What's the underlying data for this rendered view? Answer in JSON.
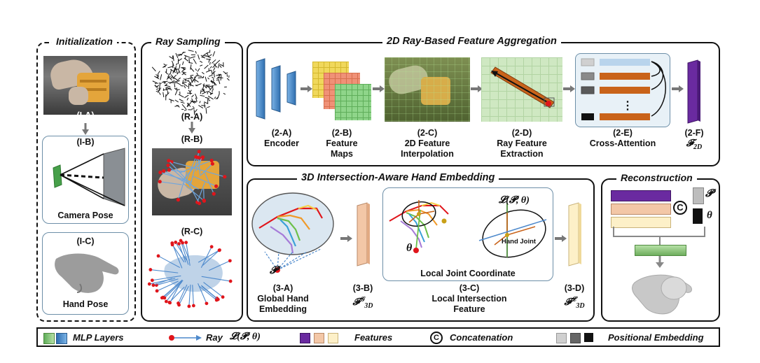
{
  "init": {
    "title": "Initialization",
    "ia": "(I-A)",
    "ib": "(I-B)",
    "camera_pose": "Camera Pose",
    "ic": "(I-C)",
    "hand_pose": "Hand Pose"
  },
  "ray": {
    "title": "Ray Sampling",
    "ra": "(R-A)",
    "rb": "(R-B)",
    "rc": "(R-C)"
  },
  "agg": {
    "title": "2D Ray-Based Feature Aggregation",
    "a_id": "(2-A)",
    "a_name": "Encoder",
    "b_id": "(2-B)",
    "b_name1": "Feature",
    "b_name2": "Maps",
    "c_id": "(2-C)",
    "c_name1": "2D Feature",
    "c_name2": "Interpolation",
    "d_id": "(2-D)",
    "d_name1": "Ray Feature",
    "d_name2": "Extraction",
    "e_id": "(2-E)",
    "e_name": "Cross-Attention",
    "f_id": "(2-F)",
    "f_sym": "𝓕",
    "f_sub": "2D"
  },
  "embed": {
    "title": "3D Intersection-Aware Hand Embedding",
    "p_sym": "𝓟",
    "a_id": "(3-A)",
    "a_name1": "Global Hand",
    "a_name2": "Embedding",
    "b_id": "(3-B)",
    "b_sym": "𝓕",
    "b_sup": "𝒢",
    "b_sub": "3D",
    "theta": "θ",
    "l_sym": "𝓛(𝓟, θ)",
    "hand_joint": "Hand Joint",
    "local_joint": "Local Joint Coordinate",
    "c_id": "(3-C)",
    "c_name1": "Local Intersection",
    "c_name2": "Feature",
    "d_id": "(3-D)",
    "d_sym": "𝓕",
    "d_sup": "𝓛",
    "d_sub": "3D"
  },
  "recon": {
    "title": "Reconstruction",
    "p_sym": "𝓟",
    "theta": "θ",
    "concat_glyph": "C"
  },
  "legend": {
    "mlp": "MLP Layers",
    "ray": "Ray",
    "ray_sym": "𝓛(𝓟, θ)",
    "features": "Features",
    "concat_glyph": "C",
    "concat": "Concatenation",
    "pos": "Positional Embedding"
  },
  "colors": {
    "encoder_blue": "#4a8fd0",
    "feature_purple": "#6a2aa0",
    "feature_peach": "#f3c7a7",
    "feature_cream": "#fdf0c8",
    "attention_orange": "#c9631a",
    "mlp_green": "#86c07a",
    "ray_red": "#e0151b",
    "ray_blue": "#4d89cc"
  }
}
